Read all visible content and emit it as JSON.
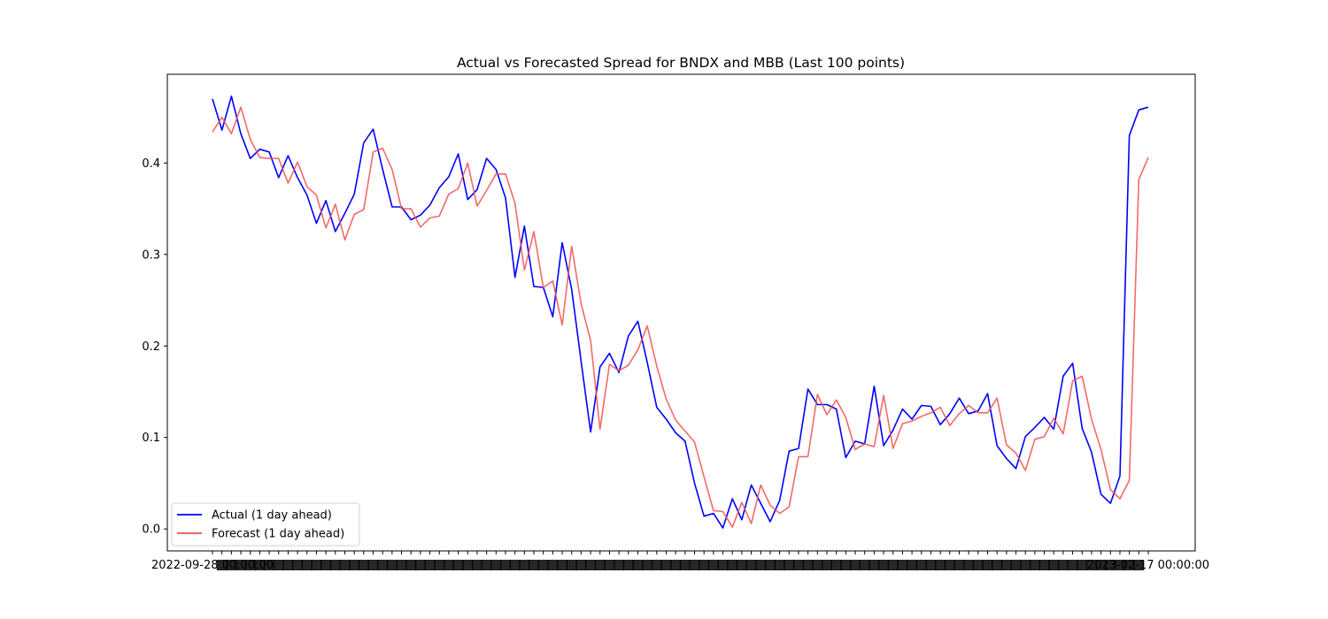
{
  "chart_data": {
    "type": "line",
    "title": "Actual vs Forecasted Spread for BNDX and MBB (Last 100 points)",
    "xlabel": "",
    "ylabel": "",
    "ylim": [
      -0.024,
      0.497
    ],
    "yticks": [
      0.0,
      0.1,
      0.2,
      0.3,
      0.4
    ],
    "ytick_labels": [
      "0.0",
      "0.1",
      "0.2",
      "0.3",
      "0.4"
    ],
    "x_tick_labels_first": "2022-09-28 00:00:00",
    "x_tick_labels_last": "2023-02-17 00:00:00",
    "legend_position": "lower-left",
    "grid": false,
    "series": [
      {
        "name": "Actual (1 day ahead)",
        "color": "#0000ff",
        "values": [
          0.47,
          0.436,
          0.473,
          0.432,
          0.405,
          0.415,
          0.412,
          0.384,
          0.408,
          0.384,
          0.365,
          0.334,
          0.359,
          0.325,
          0.345,
          0.366,
          0.422,
          0.437,
          0.393,
          0.352,
          0.352,
          0.338,
          0.343,
          0.354,
          0.373,
          0.385,
          0.41,
          0.36,
          0.371,
          0.405,
          0.393,
          0.362,
          0.275,
          0.331,
          0.265,
          0.264,
          0.232,
          0.313,
          0.262,
          0.183,
          0.106,
          0.177,
          0.192,
          0.171,
          0.211,
          0.227,
          0.182,
          0.133,
          0.12,
          0.105,
          0.096,
          0.05,
          0.014,
          0.017,
          0.001,
          0.033,
          0.01,
          0.048,
          0.028,
          0.008,
          0.031,
          0.085,
          0.088,
          0.153,
          0.136,
          0.136,
          0.131,
          0.078,
          0.096,
          0.093,
          0.156,
          0.091,
          0.108,
          0.131,
          0.12,
          0.135,
          0.134,
          0.114,
          0.126,
          0.143,
          0.126,
          0.129,
          0.148,
          0.091,
          0.077,
          0.066,
          0.101,
          0.111,
          0.122,
          0.109,
          0.167,
          0.181,
          0.11,
          0.084,
          0.038,
          0.028,
          0.058,
          0.43,
          0.458,
          0.461
        ]
      },
      {
        "name": "Forecast (1 day ahead)",
        "color": "#f0504d",
        "values": [
          0.434,
          0.45,
          0.432,
          0.461,
          0.426,
          0.406,
          0.405,
          0.405,
          0.378,
          0.401,
          0.374,
          0.365,
          0.329,
          0.355,
          0.316,
          0.344,
          0.349,
          0.412,
          0.416,
          0.393,
          0.35,
          0.35,
          0.33,
          0.34,
          0.342,
          0.366,
          0.372,
          0.4,
          0.353,
          0.37,
          0.388,
          0.388,
          0.356,
          0.283,
          0.325,
          0.264,
          0.271,
          0.223,
          0.309,
          0.246,
          0.206,
          0.109,
          0.18,
          0.173,
          0.179,
          0.196,
          0.222,
          0.178,
          0.142,
          0.119,
          0.107,
          0.095,
          0.057,
          0.02,
          0.019,
          0.002,
          0.029,
          0.006,
          0.048,
          0.026,
          0.017,
          0.024,
          0.079,
          0.079,
          0.147,
          0.125,
          0.141,
          0.122,
          0.087,
          0.093,
          0.09,
          0.146,
          0.088,
          0.115,
          0.118,
          0.123,
          0.127,
          0.133,
          0.113,
          0.126,
          0.135,
          0.127,
          0.127,
          0.143,
          0.092,
          0.083,
          0.064,
          0.098,
          0.101,
          0.121,
          0.104,
          0.162,
          0.167,
          0.12,
          0.087,
          0.043,
          0.033,
          0.053,
          0.382,
          0.406
        ]
      }
    ]
  }
}
